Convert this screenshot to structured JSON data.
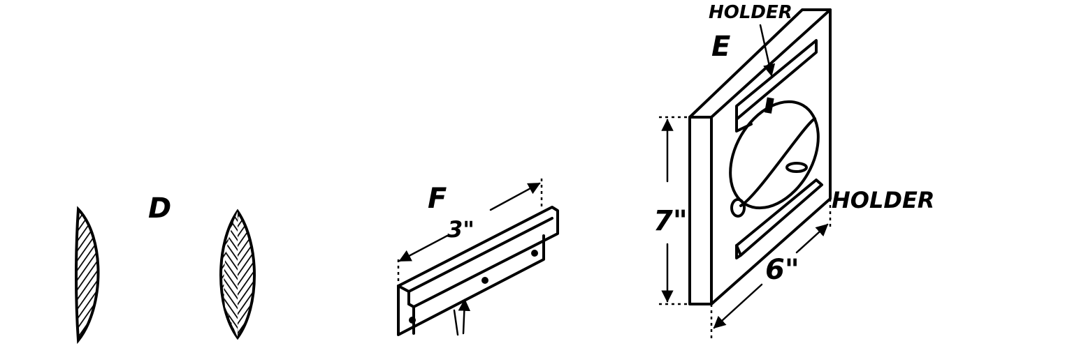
{
  "labels": {
    "d": "D",
    "f": "F",
    "e": "E",
    "holder_top": "HOLDER",
    "holder_right": "HOLDER",
    "dim_3in": "3\"",
    "dim_7in": "7\"",
    "dim_6in": "6\""
  }
}
